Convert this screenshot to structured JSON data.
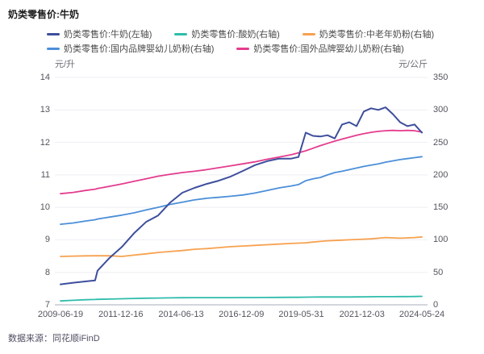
{
  "title": "奶类零售价:牛奶",
  "footer": {
    "source_label": "数据来源：同花顺iFinD"
  },
  "colors": {
    "milk_navy": "#3d4e9c",
    "yogurt_teal": "#2fbcab",
    "elder_powder_orange": "#f7a14f",
    "domestic_infant_blue": "#4b8fd9",
    "foreign_infant_pink": "#e43c8e",
    "gridline": "#edeef4",
    "axis_line": "#a8aebc",
    "tick_text": "#54545e"
  },
  "chart_data": {
    "type": "line",
    "title": "奶类零售价:牛奶",
    "x_years": [
      2009.47,
      2010,
      2010.5,
      2010.9,
      2011,
      2011.5,
      2012,
      2012.5,
      2013,
      2013.5,
      2014,
      2014.5,
      2015,
      2015.5,
      2016,
      2016.5,
      2017,
      2017.5,
      2018,
      2018.5,
      2019,
      2019.3,
      2019.6,
      2019.9,
      2020.2,
      2020.5,
      2020.8,
      2021.1,
      2021.4,
      2021.7,
      2022,
      2022.3,
      2022.6,
      2022.9,
      2023.2,
      2023.5,
      2023.8,
      2024.1,
      2024.4
    ],
    "series": [
      {
        "name": "奶类零售价:牛奶(左轴)",
        "axis": "left",
        "color": "#3d4e9c",
        "width": 2,
        "values": [
          7.63,
          7.68,
          7.72,
          7.75,
          8.05,
          8.45,
          8.78,
          9.2,
          9.55,
          9.75,
          10.15,
          10.45,
          10.6,
          10.72,
          10.82,
          10.95,
          11.12,
          11.3,
          11.42,
          11.5,
          11.5,
          11.55,
          12.3,
          12.2,
          12.18,
          12.22,
          12.12,
          12.55,
          12.62,
          12.5,
          12.95,
          13.05,
          13.0,
          13.08,
          12.87,
          12.62,
          12.5,
          12.55,
          12.3
        ]
      },
      {
        "name": "奶类零售价:酸奶(右轴)",
        "axis": "right",
        "color": "#2fbcab",
        "width": 1.8,
        "values": [
          6,
          7,
          7.8,
          8.2,
          8.4,
          8.8,
          9.3,
          9.8,
          10.2,
          10.4,
          10.7,
          10.9,
          11,
          11,
          11.1,
          11.1,
          11.2,
          11.2,
          11.3,
          11.4,
          11.5,
          11.5,
          11.8,
          11.9,
          12,
          12,
          12,
          12.1,
          12.1,
          12.2,
          12.3,
          12.4,
          12.5,
          12.5,
          12.5,
          12.6,
          12.7,
          12.8,
          13
        ]
      },
      {
        "name": "奶类零售价:中老年奶粉(右轴)",
        "axis": "right",
        "color": "#f7a14f",
        "width": 1.8,
        "values": [
          74.5,
          75,
          75.3,
          75.5,
          75.5,
          75.5,
          74.5,
          76.5,
          78.5,
          80.5,
          82,
          83.5,
          85.5,
          86.5,
          88,
          89.5,
          90.5,
          91.5,
          92.5,
          93.5,
          94.5,
          95,
          95.5,
          96.5,
          97.5,
          98.5,
          99,
          99.5,
          100,
          100.5,
          101,
          101.5,
          102.5,
          103.5,
          103,
          102.5,
          103,
          103.5,
          104.5
        ]
      },
      {
        "name": "奶类零售价:国内品牌婴幼儿奶粉(右轴)",
        "axis": "right",
        "color": "#4b8fd9",
        "width": 1.8,
        "values": [
          124,
          126,
          129,
          131,
          132,
          135,
          138,
          141.5,
          146,
          150,
          154.5,
          158,
          161.5,
          164,
          165.5,
          167,
          169,
          172,
          176,
          180,
          183,
          185,
          191,
          194,
          196,
          200,
          203.5,
          205.5,
          208,
          210.5,
          213,
          215,
          217,
          219.5,
          221.5,
          223.5,
          225,
          226.5,
          228
        ]
      },
      {
        "name": "奶类零售价:国外品牌婴幼儿奶粉(右轴)",
        "axis": "right",
        "color": "#e43c8e",
        "width": 1.8,
        "values": [
          171,
          173,
          176,
          178,
          179,
          182.5,
          186,
          190,
          194,
          198,
          201,
          203.5,
          205.5,
          208,
          211,
          214,
          217,
          220,
          224,
          227.5,
          231,
          234,
          237,
          241,
          245,
          248.5,
          252,
          255,
          258,
          261,
          263.5,
          265.5,
          267,
          268,
          268.5,
          268,
          268.5,
          268,
          266
        ]
      }
    ],
    "left_axis": {
      "label": "元/升",
      "min": 7,
      "max": 14,
      "ticks": [
        14,
        13,
        12,
        11,
        10,
        9,
        8,
        7
      ]
    },
    "right_axis": {
      "label": "元/公斤",
      "min": 0,
      "max": 350,
      "ticks": [
        350,
        300,
        250,
        200,
        150,
        100,
        50,
        0
      ]
    },
    "x_tick_labels": [
      "2009-06-19",
      "2011-12-16",
      "2014-06-13",
      "2016-12-09",
      "2019-05-31",
      "2021-12-03",
      "2024-05-24"
    ],
    "legend_rows": [
      [
        0,
        1,
        2
      ],
      [
        3,
        4
      ]
    ],
    "draw_order": [
      1,
      2,
      3,
      4,
      0
    ],
    "grid": true,
    "legend_position": "top"
  }
}
